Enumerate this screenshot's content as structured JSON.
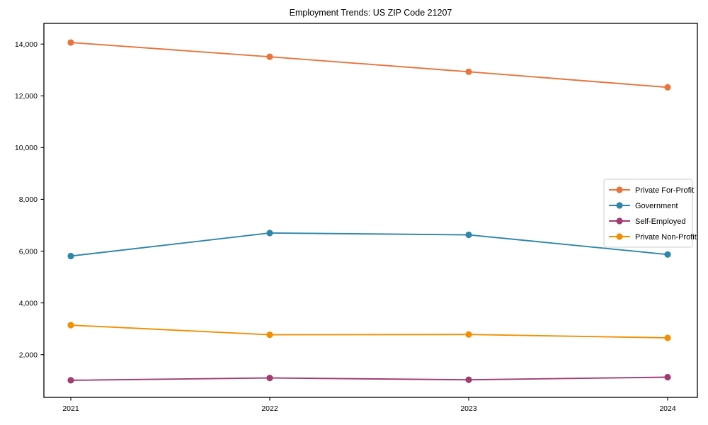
{
  "figure": {
    "background": "#ffffff",
    "axis_color": "#000000",
    "legend_border_color": "#cccccc"
  },
  "chart_data": {
    "type": "line",
    "title": "Employment Trends: US ZIP Code 21207",
    "xlabel": "",
    "ylabel": "",
    "x": [
      2021,
      2022,
      2023,
      2024
    ],
    "x_tick_labels": [
      "2021",
      "2022",
      "2023",
      "2024"
    ],
    "y_ticks": [
      2000,
      4000,
      6000,
      8000,
      10000,
      12000,
      14000
    ],
    "y_tick_labels": [
      "2,000",
      "4,000",
      "6,000",
      "8,000",
      "10,000",
      "12,000",
      "14,000"
    ],
    "ylim": [
      350,
      14800
    ],
    "grid": false,
    "legend_position": "center-right",
    "marker": "circle",
    "series": [
      {
        "name": "Private For-Profit",
        "color": "#E8743B",
        "values": [
          14060,
          13510,
          12930,
          12330
        ]
      },
      {
        "name": "Government",
        "color": "#2E86AB",
        "values": [
          5810,
          6700,
          6630,
          5870
        ]
      },
      {
        "name": "Self-Employed",
        "color": "#A23B72",
        "values": [
          1010,
          1100,
          1030,
          1130
        ]
      },
      {
        "name": "Private Non-Profit",
        "color": "#F18F01",
        "values": [
          3140,
          2770,
          2780,
          2650
        ]
      }
    ]
  }
}
